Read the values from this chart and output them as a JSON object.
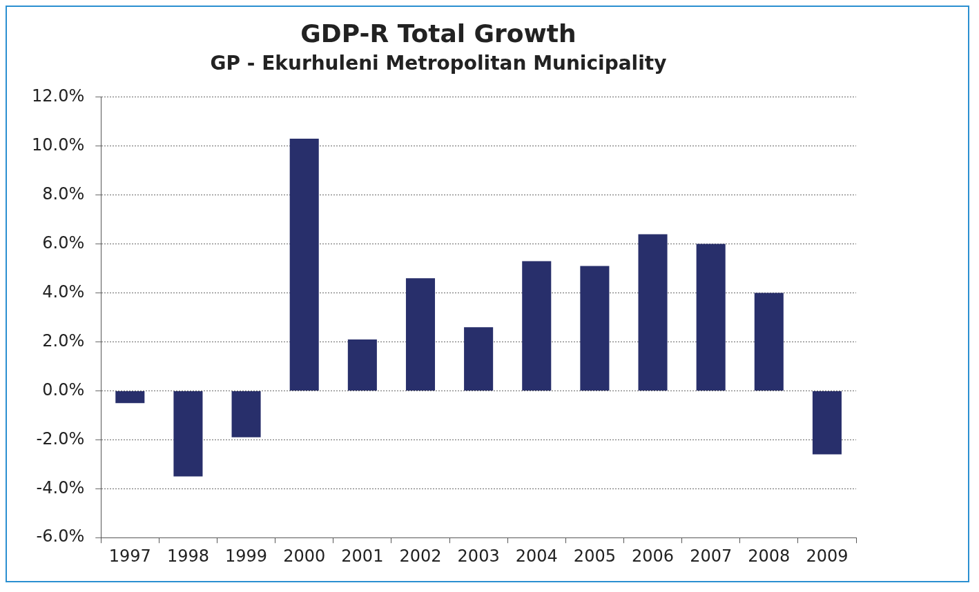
{
  "chart_data": {
    "type": "bar",
    "title": "GDP-R Total Growth",
    "subtitle": "GP - Ekurhuleni Metropolitan Municipality",
    "categories": [
      "1997",
      "1998",
      "1999",
      "2000",
      "2001",
      "2002",
      "2003",
      "2004",
      "2005",
      "2006",
      "2007",
      "2008",
      "2009"
    ],
    "values": [
      -0.5,
      -3.5,
      -1.9,
      10.3,
      2.1,
      4.6,
      2.6,
      5.3,
      5.1,
      6.4,
      6.0,
      4.0,
      -2.6
    ],
    "color": "#282f6b",
    "ylim": [
      -6,
      12
    ],
    "yticks": [
      {
        "value": -6,
        "label": "-6.0%"
      },
      {
        "value": -4,
        "label": "-4.0%"
      },
      {
        "value": -2,
        "label": "-2.0%"
      },
      {
        "value": 0,
        "label": "0.0%"
      },
      {
        "value": 2,
        "label": "2.0%"
      },
      {
        "value": 4,
        "label": "4.0%"
      },
      {
        "value": 6,
        "label": "6.0%"
      },
      {
        "value": 8,
        "label": "8.0%"
      },
      {
        "value": 10,
        "label": "10.0%"
      },
      {
        "value": 12,
        "label": "12.0%"
      }
    ],
    "grid": "y",
    "legend": false
  }
}
